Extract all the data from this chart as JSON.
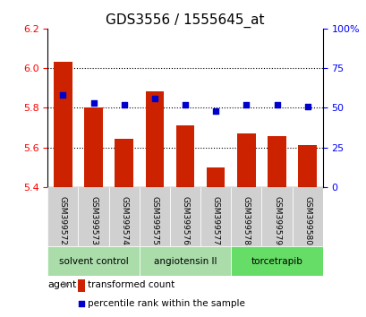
{
  "title": "GDS3556 / 1555645_at",
  "samples": [
    "GSM399572",
    "GSM399573",
    "GSM399574",
    "GSM399575",
    "GSM399576",
    "GSM399577",
    "GSM399578",
    "GSM399579",
    "GSM399580"
  ],
  "transformed_count": [
    6.03,
    5.8,
    5.645,
    5.885,
    5.71,
    5.5,
    5.67,
    5.655,
    5.61
  ],
  "percentile_rank": [
    58,
    53,
    52,
    56,
    52,
    48,
    52,
    52,
    51
  ],
  "ylim_left": [
    5.4,
    6.2
  ],
  "ylim_right": [
    0,
    100
  ],
  "yticks_left": [
    5.4,
    5.6,
    5.8,
    6.0,
    6.2
  ],
  "yticks_right": [
    0,
    25,
    50,
    75,
    100
  ],
  "ytick_labels_right": [
    "0",
    "25",
    "50",
    "75",
    "100%"
  ],
  "bar_color": "#cc2200",
  "dot_color": "#0000cc",
  "grid_color": "#000000",
  "groups": [
    {
      "label": "solvent control",
      "start": 0,
      "end": 3,
      "color": "#aaddaa"
    },
    {
      "label": "angiotensin II",
      "start": 3,
      "end": 6,
      "color": "#aaddaa"
    },
    {
      "label": "torcetrapib",
      "start": 6,
      "end": 9,
      "color": "#66dd66"
    }
  ],
  "agent_label": "agent",
  "legend_bar_label": "transformed count",
  "legend_dot_label": "percentile rank within the sample",
  "bar_bottom": 5.4,
  "bar_width": 0.6
}
